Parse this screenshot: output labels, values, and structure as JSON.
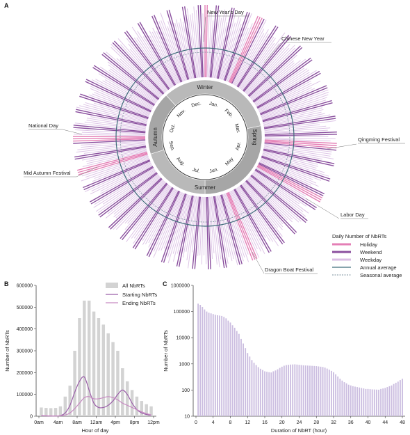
{
  "panels": {
    "a": "A",
    "b": "B",
    "c": "C"
  },
  "colors": {
    "holiday": "#e47fb6",
    "weekend": "#8a4f9e",
    "weekday": "#d9bde3",
    "annual": "#3f6d7a",
    "seasonal": "#7a8f9c",
    "season_ring": "#b9b9b9",
    "season_ring_dark": "#a6a6a6",
    "all_bar": "#d3d3d3",
    "starting": "#9b5fa9",
    "ending": "#c78ac2",
    "duration_bar": "#cbbde0"
  },
  "circular": {
    "seasons": [
      "Winter",
      "Spring",
      "Summer",
      "Autumn"
    ],
    "months": [
      "Jan.",
      "Feb.",
      "Mar.",
      "Apr.",
      "May",
      "Jun.",
      "Jul.",
      "Aug.",
      "Sep.",
      "Oct.",
      "Nov.",
      "Dec."
    ],
    "annotations": [
      {
        "label": "New Year's Day"
      },
      {
        "label": "Chinese New Year"
      },
      {
        "label": "Qingming Festival"
      },
      {
        "label": "Labor Day"
      },
      {
        "label": "Dragon Boat Festival"
      },
      {
        "label": "Mid Autumn Festival"
      },
      {
        "label": "National Day"
      }
    ],
    "legend": {
      "title": "Daily Number of NbRTs",
      "items": [
        {
          "label": "Holiday",
          "key": "holiday"
        },
        {
          "label": "Weekend",
          "key": "weekend"
        },
        {
          "label": "Weekday",
          "key": "weekday"
        },
        {
          "label": "Annual average",
          "key": "annual"
        },
        {
          "label": "Seasonal average",
          "key": "seasonal"
        }
      ]
    }
  },
  "chart_data": [
    {
      "type": "bar",
      "description_panel": "B",
      "xlabel": "Hour of day",
      "ylabel": "Number of NbRTs",
      "ylim": [
        0,
        600000
      ],
      "yticks": [
        "0",
        "100000",
        "200000",
        "300000",
        "400000",
        "500000",
        "600000"
      ],
      "xticks": [
        "0am",
        "4am",
        "8am",
        "12am",
        "4pm",
        "8pm",
        "12pm"
      ],
      "x": [
        0,
        1,
        2,
        3,
        4,
        5,
        6,
        7,
        8,
        9,
        10,
        11,
        12,
        13,
        14,
        15,
        16,
        17,
        18,
        19,
        20,
        21,
        22,
        23
      ],
      "series": [
        {
          "name": "All NbRTs",
          "kind": "bar",
          "values": [
            40000,
            38000,
            37000,
            38000,
            45000,
            90000,
            140000,
            300000,
            450000,
            530000,
            530000,
            480000,
            450000,
            420000,
            380000,
            340000,
            300000,
            220000,
            160000,
            120000,
            90000,
            70000,
            55000,
            45000
          ]
        },
        {
          "name": "Starting NbRTs",
          "kind": "line",
          "values": [
            2000,
            1500,
            1000,
            1000,
            3000,
            15000,
            50000,
            110000,
            160000,
            180000,
            120000,
            60000,
            40000,
            40000,
            50000,
            70000,
            100000,
            120000,
            100000,
            60000,
            30000,
            15000,
            8000,
            4000
          ]
        },
        {
          "name": "Ending NbRTs",
          "kind": "line",
          "values": [
            3000,
            2000,
            1500,
            1000,
            2000,
            5000,
            15000,
            35000,
            60000,
            85000,
            90000,
            80000,
            80000,
            85000,
            90000,
            85000,
            75000,
            60000,
            50000,
            40000,
            30000,
            20000,
            12000,
            6000
          ]
        }
      ]
    },
    {
      "type": "bar",
      "description_panel": "C",
      "xlabel": "Duration of NbRT (hour)",
      "ylabel": "Number of NbRTs",
      "yscale": "log",
      "ylim": [
        10,
        1000000
      ],
      "yticks": [
        "10",
        "100",
        "1000",
        "10000",
        "100000",
        "1000000"
      ],
      "xticks": [
        "0",
        "4",
        "8",
        "12",
        "16",
        "20",
        "24",
        "28",
        "32",
        "36",
        "40",
        "44",
        "48"
      ],
      "x": [
        0.5,
        1,
        1.5,
        2,
        2.5,
        3,
        3.5,
        4,
        4.5,
        5,
        5.5,
        6,
        6.5,
        7,
        7.5,
        8,
        8.5,
        9,
        9.5,
        10,
        10.5,
        11,
        11.5,
        12,
        12.5,
        13,
        13.5,
        14,
        14.5,
        15,
        15.5,
        16,
        16.5,
        17,
        17.5,
        18,
        18.5,
        19,
        19.5,
        20,
        20.5,
        21,
        21.5,
        22,
        22.5,
        23,
        23.5,
        24,
        24.5,
        25,
        25.5,
        26,
        26.5,
        27,
        27.5,
        28,
        28.5,
        29,
        29.5,
        30,
        30.5,
        31,
        31.5,
        32,
        32.5,
        33,
        33.5,
        34,
        34.5,
        35,
        35.5,
        36,
        36.5,
        37,
        37.5,
        38,
        38.5,
        39,
        39.5,
        40,
        40.5,
        41,
        41.5,
        42,
        42.5,
        43,
        43.5,
        44,
        44.5,
        45,
        45.5,
        46,
        46.5,
        47,
        47.5,
        48
      ],
      "values": [
        200000,
        180000,
        150000,
        120000,
        100000,
        90000,
        85000,
        80000,
        75000,
        72000,
        70000,
        68000,
        62000,
        55000,
        45000,
        38000,
        30000,
        24000,
        18000,
        14000,
        9000,
        6000,
        4000,
        2600,
        1900,
        1400,
        1100,
        900,
        750,
        650,
        580,
        520,
        500,
        480,
        470,
        520,
        560,
        620,
        700,
        780,
        850,
        900,
        920,
        940,
        950,
        960,
        940,
        920,
        900,
        880,
        870,
        860,
        850,
        840,
        830,
        820,
        800,
        780,
        760,
        720,
        660,
        600,
        540,
        480,
        400,
        330,
        270,
        230,
        200,
        180,
        160,
        150,
        140,
        135,
        130,
        125,
        120,
        115,
        110,
        110,
        108,
        106,
        105,
        104,
        103,
        110,
        115,
        120,
        130,
        140,
        150,
        170,
        190,
        210,
        240,
        270
      ]
    }
  ]
}
